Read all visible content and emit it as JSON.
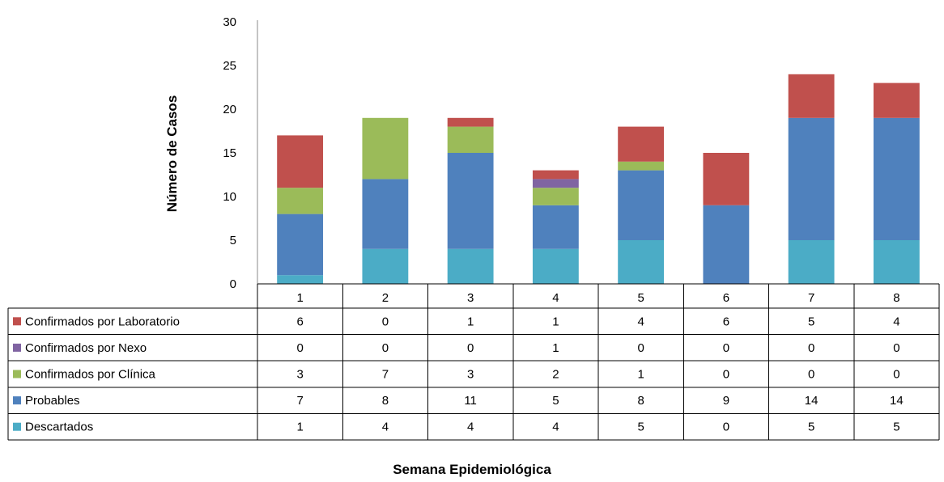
{
  "chart_data": {
    "type": "bar",
    "stacked": true,
    "xlabel": "Semana Epidemiológica",
    "ylabel": "Número de Casos",
    "ylim": [
      0,
      30
    ],
    "yticks": [
      0,
      5,
      10,
      15,
      20,
      25,
      30
    ],
    "grid": false,
    "legend": "data-table-rows",
    "categories": [
      "1",
      "2",
      "3",
      "4",
      "5",
      "6",
      "7",
      "8"
    ],
    "series": [
      {
        "name": "Descartados",
        "color": "#4bacc6",
        "values": [
          1,
          4,
          4,
          4,
          5,
          0,
          5,
          5
        ]
      },
      {
        "name": "Probables",
        "color": "#4f81bd",
        "values": [
          7,
          8,
          11,
          5,
          8,
          9,
          14,
          14
        ]
      },
      {
        "name": "Confirmados por Clínica",
        "color": "#9bbb59",
        "values": [
          3,
          7,
          3,
          2,
          1,
          0,
          0,
          0
        ]
      },
      {
        "name": "Confirmados por Nexo",
        "color": "#8064a2",
        "values": [
          0,
          0,
          0,
          1,
          0,
          0,
          0,
          0
        ]
      },
      {
        "name": "Confirmados por Laboratorio",
        "color": "#c0504d",
        "values": [
          6,
          0,
          1,
          1,
          4,
          6,
          5,
          4
        ]
      }
    ],
    "table_row_order": [
      "Confirmados por Laboratorio",
      "Confirmados por Nexo",
      "Confirmados por Clínica",
      "Probables",
      "Descartados"
    ]
  }
}
